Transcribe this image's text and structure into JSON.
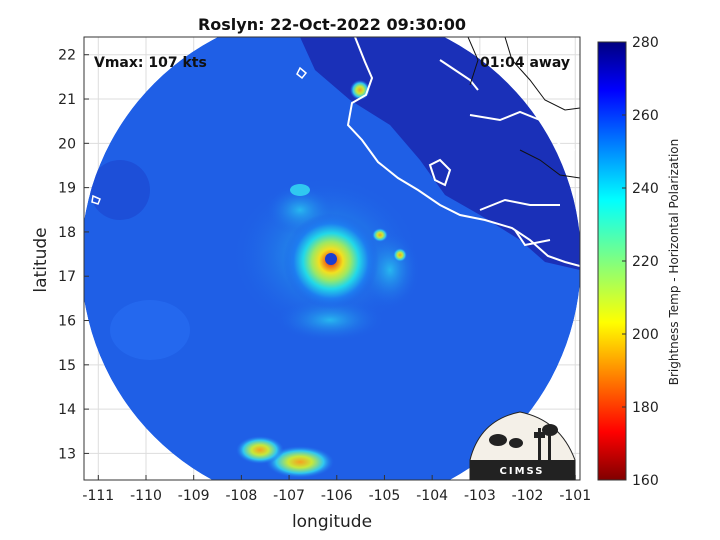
{
  "figure": {
    "title": "Roslyn: 22-Oct-2022 09:30:00",
    "vmax_label": "Vmax: 107 kts",
    "time_label": "01:04 away",
    "logo_text": "CIMSS"
  },
  "chart_data": {
    "type": "heatmap",
    "title": "Roslyn: 22-Oct-2022 09:30:00",
    "xlabel": "longitude",
    "ylabel": "latitude",
    "xlim": [
      -111.3,
      -100.9
    ],
    "ylim": [
      12.4,
      22.4
    ],
    "xticks": [
      -111,
      -110,
      -109,
      -108,
      -107,
      -106,
      -105,
      -104,
      -103,
      -102,
      -101
    ],
    "yticks": [
      13,
      14,
      15,
      16,
      17,
      18,
      19,
      20,
      21,
      22
    ],
    "grid": true,
    "scan_center": {
      "lon": -106.1,
      "lat": 17.45
    },
    "storm_center": {
      "lon": -106.1,
      "lat": 17.45
    },
    "colorbar": {
      "label": "Brightness Temp - Horizontal Polarization",
      "range": [
        160,
        280
      ],
      "ticks": [
        160,
        180,
        200,
        220,
        240,
        260,
        280
      ],
      "colormap": "jet"
    },
    "annotations": [
      "Vmax: 107 kts",
      "01:04 away"
    ]
  },
  "colors": {
    "background_outside_swath": "#ffffff",
    "coastline": "#ffffff",
    "gridline": "#dddddd"
  }
}
